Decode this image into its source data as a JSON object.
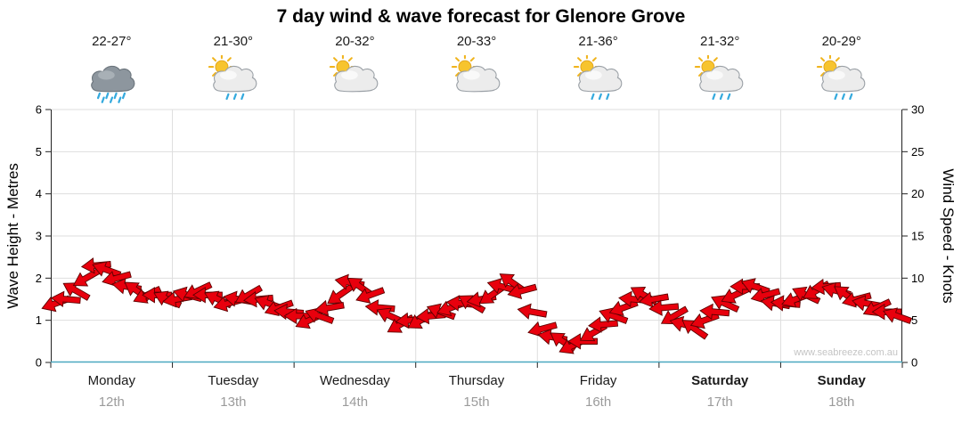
{
  "chart_data": {
    "type": "wind-arrows",
    "title": "7 day wind & wave forecast for Glenore Grove",
    "watermark": "www.seabreeze.com.au",
    "left_axis": {
      "label": "Wave Height - Metres",
      "range": [
        0,
        6
      ],
      "ticks": [
        0,
        1,
        2,
        3,
        4,
        5,
        6
      ]
    },
    "right_axis": {
      "label": "Wind Speed - Knots",
      "range": [
        0,
        30
      ],
      "ticks": [
        0,
        5,
        10,
        15,
        20,
        25,
        30
      ]
    },
    "days": [
      {
        "name": "Monday",
        "date": "12th",
        "temp_range": "22-27°",
        "icon": "rain-cloud",
        "weekend": false
      },
      {
        "name": "Tuesday",
        "date": "13th",
        "temp_range": "21-30°",
        "icon": "sun-cloud-rain",
        "weekend": false
      },
      {
        "name": "Wednesday",
        "date": "14th",
        "temp_range": "20-32°",
        "icon": "sun-cloud",
        "weekend": false
      },
      {
        "name": "Thursday",
        "date": "15th",
        "temp_range": "20-33°",
        "icon": "sun-cloud",
        "weekend": false
      },
      {
        "name": "Friday",
        "date": "16th",
        "temp_range": "21-36°",
        "icon": "sun-cloud-rain",
        "weekend": false
      },
      {
        "name": "Saturday",
        "date": "17th",
        "temp_range": "21-32°",
        "icon": "sun-cloud-rain",
        "weekend": true
      },
      {
        "name": "Sunday",
        "date": "18th",
        "temp_range": "20-29°",
        "icon": "sun-cloud-rain",
        "weekend": true
      }
    ],
    "colors": {
      "arrow_fill": "#e8000d",
      "arrow_stroke": "#5c0000",
      "grid": "#dedede",
      "axis": "#222222",
      "baseline": "#4aa8c0"
    },
    "wind": {
      "points_per_day": 12,
      "speeds_knots": [
        7,
        7.5,
        8.5,
        10,
        11.5,
        11,
        10,
        9,
        8.5,
        8,
        8,
        7.5,
        7.5,
        8,
        8.5,
        8,
        7.5,
        7,
        7.5,
        8,
        7.5,
        7,
        6.5,
        6,
        5.5,
        5,
        5.5,
        6.5,
        8,
        9.5,
        9,
        8,
        6.5,
        5.5,
        4.5,
        5,
        5,
        5.5,
        6,
        6.5,
        7,
        7,
        7.5,
        8,
        9,
        9.5,
        8.5,
        6,
        4,
        3,
        2.5,
        2,
        2.5,
        3.5,
        4.5,
        5.5,
        6.5,
        7.5,
        8,
        7.5,
        6.5,
        5.5,
        4.5,
        4,
        5,
        6,
        7,
        8,
        9,
        9,
        8,
        7,
        7,
        7.5,
        8,
        8.5,
        9,
        8.5,
        8,
        7.5,
        7,
        6.5,
        6,
        5.5
      ],
      "directions_deg": [
        160,
        185,
        210,
        150,
        175,
        200,
        165,
        190,
        215,
        155,
        180,
        205,
        170,
        195,
        155,
        180,
        205,
        165,
        190,
        150,
        175,
        200,
        160,
        185,
        180,
        155,
        200,
        170,
        145,
        190,
        215,
        160,
        185,
        205,
        150,
        175,
        150,
        175,
        200,
        160,
        185,
        210,
        170,
        145,
        195,
        215,
        165,
        190,
        165,
        190,
        215,
        155,
        180,
        150,
        175,
        200,
        160,
        185,
        210,
        170,
        175,
        150,
        195,
        215,
        160,
        185,
        205,
        155,
        180,
        200,
        165,
        190,
        185,
        160,
        205,
        150,
        175,
        195,
        215,
        165,
        190,
        155,
        180,
        200
      ]
    }
  }
}
